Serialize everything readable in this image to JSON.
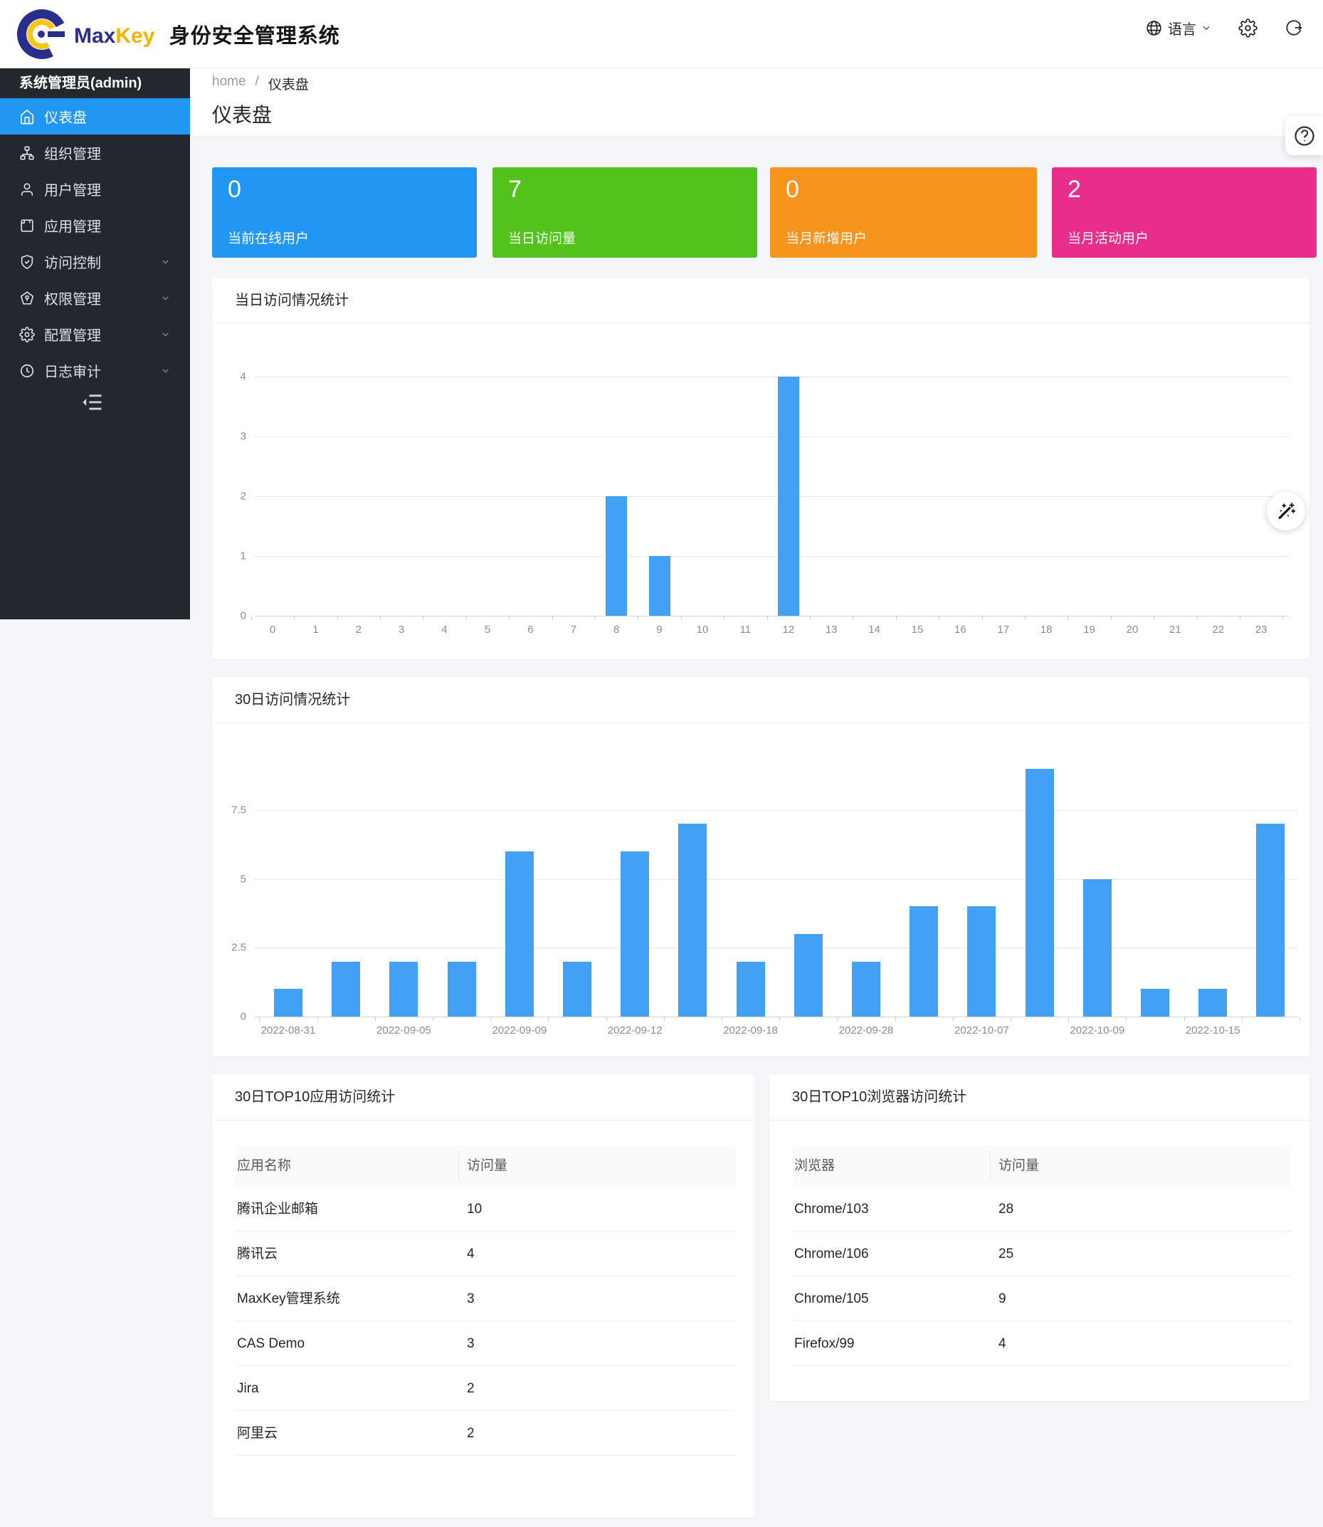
{
  "header": {
    "brand_max": "Max",
    "brand_key": "Key",
    "product_title": "身份安全管理系统",
    "language_label": "语言"
  },
  "sidebar": {
    "user_label": "系统管理员(admin)",
    "items": [
      {
        "label": "仪表盘",
        "icon": "home-icon",
        "active": true,
        "expandable": false
      },
      {
        "label": "组织管理",
        "icon": "org-icon",
        "active": false,
        "expandable": false
      },
      {
        "label": "用户管理",
        "icon": "user-icon",
        "active": false,
        "expandable": false
      },
      {
        "label": "应用管理",
        "icon": "app-icon",
        "active": false,
        "expandable": false
      },
      {
        "label": "访问控制",
        "icon": "shield-icon",
        "active": false,
        "expandable": true
      },
      {
        "label": "权限管理",
        "icon": "permission-icon",
        "active": false,
        "expandable": true
      },
      {
        "label": "配置管理",
        "icon": "gear-icon",
        "active": false,
        "expandable": true
      },
      {
        "label": "日志审计",
        "icon": "clock-icon",
        "active": false,
        "expandable": true
      }
    ]
  },
  "breadcrumb": {
    "root": "home",
    "separator": "/",
    "current": "仪表盘"
  },
  "page": {
    "title": "仪表盘"
  },
  "stat_cards": [
    {
      "value": "0",
      "label": "当前在线用户",
      "color": "#2196f3"
    },
    {
      "value": "7",
      "label": "当日访问量",
      "color": "#53c21d"
    },
    {
      "value": "0",
      "label": "当月新增用户",
      "color": "#f7941e"
    },
    {
      "value": "2",
      "label": "当月活动用户",
      "color": "#e82e8a"
    }
  ],
  "chart_data": [
    {
      "type": "bar",
      "title": "当日访问情况统计",
      "categories": [
        "0",
        "1",
        "2",
        "3",
        "4",
        "5",
        "6",
        "7",
        "8",
        "9",
        "10",
        "11",
        "12",
        "13",
        "14",
        "15",
        "16",
        "17",
        "18",
        "19",
        "20",
        "21",
        "22",
        "23"
      ],
      "values": [
        0,
        0,
        0,
        0,
        0,
        0,
        0,
        0,
        2,
        1,
        0,
        0,
        4,
        0,
        0,
        0,
        0,
        0,
        0,
        0,
        0,
        0,
        0,
        0
      ],
      "yticks": [
        0,
        1,
        2,
        3,
        4
      ],
      "ylim": [
        0,
        4
      ],
      "xlabel": "",
      "ylabel": "",
      "grid": true,
      "legend": "none",
      "bar_color": "#42a0f5"
    },
    {
      "type": "bar",
      "title": "30日访问情况统计",
      "categories": [
        "2022-08-31",
        "",
        "2022-09-05",
        "",
        "2022-09-09",
        "",
        "2022-09-12",
        "",
        "2022-09-18",
        "",
        "2022-09-28",
        "",
        "2022-10-07",
        "",
        "2022-10-09",
        "",
        "2022-10-15",
        ""
      ],
      "values": [
        1,
        2,
        2,
        2,
        6,
        2,
        6,
        7,
        2,
        3,
        2,
        4,
        4,
        9,
        5,
        1,
        1,
        7
      ],
      "yticks": [
        0,
        2.5,
        5,
        7.5
      ],
      "ylim": [
        0,
        10
      ],
      "xlabel": "",
      "ylabel": "",
      "grid": true,
      "legend": "none",
      "bar_color": "#42a0f5"
    }
  ],
  "tables": [
    {
      "title": "30日TOP10应用访问统计",
      "columns": [
        "应用名称",
        "访问量"
      ],
      "rows": [
        [
          "腾讯企业邮箱",
          "10"
        ],
        [
          "腾讯云",
          "4"
        ],
        [
          "MaxKey管理系统",
          "3"
        ],
        [
          "CAS Demo",
          "3"
        ],
        [
          "Jira",
          "2"
        ],
        [
          "阿里云",
          "2"
        ]
      ]
    },
    {
      "title": "30日TOP10浏览器访问统计",
      "columns": [
        "浏览器",
        "访问量"
      ],
      "rows": [
        [
          "Chrome/103",
          "28"
        ],
        [
          "Chrome/106",
          "25"
        ],
        [
          "Chrome/105",
          "9"
        ],
        [
          "Firefox/99",
          "4"
        ]
      ]
    }
  ]
}
